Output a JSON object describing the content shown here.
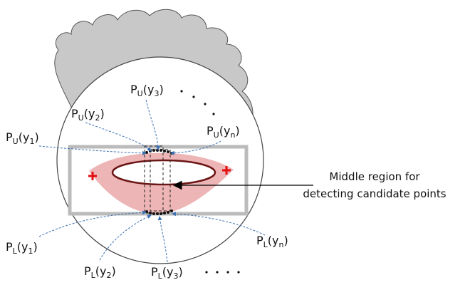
{
  "labels": {
    "upper": [
      {
        "main": "P",
        "sub": "U",
        "arg": "(y",
        "arg_sub": "1",
        "close": ")"
      },
      {
        "main": "P",
        "sub": "U",
        "arg": "(y",
        "arg_sub": "2",
        "close": ")"
      },
      {
        "main": "P",
        "sub": "U",
        "arg": "(y",
        "arg_sub": "3",
        "close": ")"
      },
      {
        "main": "P",
        "sub": "U",
        "arg": "(y",
        "arg_sub": "n",
        "close": ")"
      }
    ],
    "lower": [
      {
        "main": "P",
        "sub": "L",
        "arg": "(y",
        "arg_sub": "1",
        "close": ")"
      },
      {
        "main": "P",
        "sub": "L",
        "arg": "(y",
        "arg_sub": "2",
        "close": ")"
      },
      {
        "main": "P",
        "sub": "L",
        "arg": "(y",
        "arg_sub": "3",
        "close": ")"
      },
      {
        "main": "P",
        "sub": "L",
        "arg": "(y",
        "arg_sub": "n",
        "close": ")"
      }
    ]
  },
  "callout": {
    "line1": "Middle region for",
    "line2": "detecting candidate points"
  }
}
